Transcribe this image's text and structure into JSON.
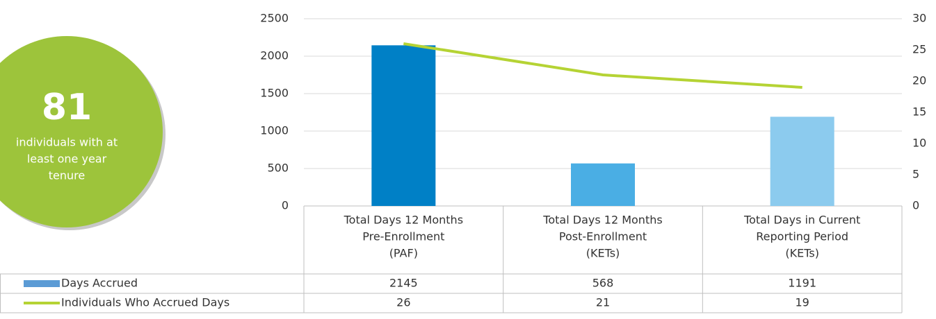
{
  "chart_data": {
    "type": "combo",
    "badge": {
      "value": "81",
      "text": [
        "individuals with at",
        "least one year",
        "tenure"
      ],
      "color": "#9dc43b"
    },
    "categories": [
      [
        "Total Days 12 Months",
        "Pre-Enrollment",
        "(PAF)"
      ],
      [
        "Total Days 12 Months",
        "Post-Enrollment",
        "(KETs)"
      ],
      [
        "Total Days in Current",
        "Reporting Period",
        "(KETs)"
      ]
    ],
    "series": [
      {
        "name": "Days Accrued",
        "type": "bar",
        "color": "#5b9bd5",
        "colors": [
          "#0080c6",
          "#4aaee4",
          "#8ccbee"
        ],
        "values": [
          2145,
          568,
          1191
        ]
      },
      {
        "name": "Individuals Who Accrued Days",
        "type": "line",
        "axis": "y2",
        "color": "#b5d334",
        "values": [
          26,
          21,
          19
        ]
      }
    ],
    "ylim": [
      0,
      2500
    ],
    "yticks": [
      0,
      500,
      1000,
      1500,
      2000,
      2500
    ],
    "y2lim": [
      0,
      30
    ],
    "y2ticks": [
      0,
      5,
      10,
      15,
      20,
      25,
      30
    ],
    "grid": true
  }
}
